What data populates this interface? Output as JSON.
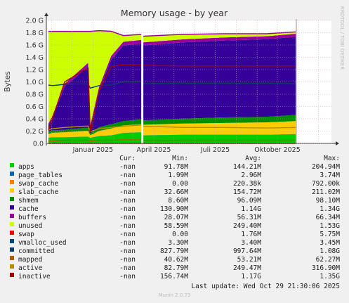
{
  "chart_data": {
    "type": "area",
    "title": "Memory usage - by year",
    "ylabel": "Bytes",
    "side_label": "RRDTOOL / TOBI OETIKER",
    "ylim": [
      0,
      2.0
    ],
    "yticks": [
      "0.0",
      "0.2 G",
      "0.4 G",
      "0.6 G",
      "0.8 G",
      "1.0 G",
      "1.2 G",
      "1.4 G",
      "1.6 G",
      "1.8 G",
      "2.0 G"
    ],
    "ytick_values": [
      0,
      0.2,
      0.4,
      0.6,
      0.8,
      1.0,
      1.2,
      1.4,
      1.6,
      1.8,
      2.0
    ],
    "xticks": [
      {
        "label": "Januar 2025",
        "x": "2025-01-01"
      },
      {
        "label": "April 2025",
        "x": "2025-04-01"
      },
      {
        "label": "Juli 2025",
        "x": "2025-07-01"
      },
      {
        "label": "Oktober 2025",
        "x": "2025-10-01"
      }
    ],
    "xrange": [
      "2024-10-24",
      "2025-12-20"
    ],
    "gap": "2025-03-15",
    "x": [
      "2024-10-27",
      "2024-11-02",
      "2024-11-20",
      "2024-12-20",
      "2024-12-25",
      "2024-12-28",
      "2025-01-10",
      "2025-01-28",
      "2025-02-15",
      "2025-03-14",
      "2025-03-16",
      "2025-05-15",
      "2025-07-15",
      "2025-09-15",
      "2025-10-28"
    ],
    "stack_series": [
      {
        "name": "apps",
        "color": "#00cc00",
        "values": [
          0.09,
          0.1,
          0.1,
          0.11,
          0.11,
          0.09,
          0.12,
          0.13,
          0.17,
          0.18,
          0.13,
          0.14,
          0.14,
          0.14,
          0.15
        ]
      },
      {
        "name": "page_tables",
        "color": "#0066b3",
        "values": [
          0.002,
          0.002,
          0.002,
          0.002,
          0.002,
          0.002,
          0.003,
          0.003,
          0.003,
          0.003,
          0.003,
          0.003,
          0.003,
          0.003,
          0.003
        ]
      },
      {
        "name": "swap_cache",
        "color": "#ff8000",
        "values": [
          0.0,
          0.0,
          0.0,
          0.0,
          0.0,
          0.0,
          0.0,
          0.0,
          0.0,
          0.0,
          0.0,
          0.0,
          0.0,
          0.0,
          0.0
        ]
      },
      {
        "name": "slab_cache",
        "color": "#ffcc00",
        "values": [
          0.06,
          0.07,
          0.08,
          0.09,
          0.09,
          0.04,
          0.08,
          0.11,
          0.12,
          0.13,
          0.17,
          0.18,
          0.19,
          0.2,
          0.21
        ]
      },
      {
        "name": "shmem",
        "color": "#008f00",
        "values": [
          0.04,
          0.04,
          0.04,
          0.05,
          0.05,
          0.03,
          0.06,
          0.07,
          0.07,
          0.08,
          0.07,
          0.08,
          0.09,
          0.09,
          0.1
        ]
      },
      {
        "name": "cache",
        "color": "#330099",
        "values": [
          0.1,
          0.2,
          0.7,
          0.95,
          1.0,
          0.1,
          0.6,
          1.05,
          1.23,
          1.23,
          1.22,
          1.24,
          1.25,
          1.26,
          1.27
        ]
      },
      {
        "name": "buffers",
        "color": "#990099",
        "values": [
          0.03,
          0.04,
          0.05,
          0.06,
          0.06,
          0.03,
          0.05,
          0.06,
          0.06,
          0.06,
          0.05,
          0.05,
          0.05,
          0.05,
          0.05
        ]
      },
      {
        "name": "unused",
        "color": "#ccff00",
        "values": [
          1.5,
          1.37,
          0.85,
          0.56,
          0.51,
          1.53,
          0.92,
          0.4,
          0.1,
          0.09,
          0.1,
          0.08,
          0.06,
          0.04,
          0.03
        ]
      }
    ],
    "line_series": [
      {
        "name": "swap",
        "color": "#ff0000",
        "values": [
          0.0,
          0.0,
          0.0,
          0.0,
          0.0,
          0.0,
          0.0,
          0.0,
          0.0,
          0.0,
          0.0,
          0.0,
          0.0,
          0.0,
          0.0
        ]
      },
      {
        "name": "vmalloc_used",
        "color": "#00487d",
        "values": [
          0.003,
          0.003,
          0.003,
          0.003,
          0.003,
          0.003,
          0.003,
          0.003,
          0.003,
          0.003,
          0.003,
          0.003,
          0.003,
          0.003,
          0.003
        ]
      },
      {
        "name": "committed",
        "color": "#0a3d6b",
        "values": [
          0.95,
          0.94,
          0.96,
          0.97,
          0.96,
          0.9,
          0.94,
          0.95,
          1.0,
          1.0,
          0.97,
          0.98,
          0.98,
          0.98,
          0.97
        ]
      },
      {
        "name": "mapped",
        "color": "#b35a00",
        "values": [
          0.04,
          0.04,
          0.05,
          0.05,
          0.05,
          0.04,
          0.05,
          0.05,
          0.06,
          0.06,
          0.05,
          0.05,
          0.05,
          0.05,
          0.05
        ]
      },
      {
        "name": "active",
        "color": "#b38f00",
        "values": [
          0.22,
          0.24,
          0.26,
          0.28,
          0.28,
          0.19,
          0.24,
          0.26,
          0.28,
          0.3,
          0.28,
          0.26,
          0.26,
          0.25,
          0.26
        ]
      },
      {
        "name": "inactive",
        "color": "#a50000",
        "values": [
          0.22,
          0.4,
          1.0,
          1.2,
          1.22,
          0.17,
          0.85,
          1.25,
          1.28,
          1.28,
          1.27,
          1.26,
          1.26,
          1.26,
          1.26
        ]
      }
    ]
  },
  "legend": {
    "headers": {
      "cur": "Cur:",
      "min": "Min:",
      "avg": "Avg:",
      "max": "Max:"
    },
    "rows": [
      {
        "name": "apps",
        "color": "#00cc00",
        "cur": "-nan",
        "min": "91.78M",
        "avg": "144.21M",
        "max": "204.94M"
      },
      {
        "name": "page_tables",
        "color": "#0066b3",
        "cur": "-nan",
        "min": "1.99M",
        "avg": "2.96M",
        "max": "3.74M"
      },
      {
        "name": "swap_cache",
        "color": "#ff8000",
        "cur": "-nan",
        "min": "0.00",
        "avg": "220.38k",
        "max": "792.00k"
      },
      {
        "name": "slab_cache",
        "color": "#ffcc00",
        "cur": "-nan",
        "min": "32.66M",
        "avg": "154.72M",
        "max": "211.02M"
      },
      {
        "name": "shmem",
        "color": "#008f00",
        "cur": "-nan",
        "min": "8.60M",
        "avg": "96.09M",
        "max": "98.10M"
      },
      {
        "name": "cache",
        "color": "#330099",
        "cur": "-nan",
        "min": "130.90M",
        "avg": "1.14G",
        "max": "1.34G"
      },
      {
        "name": "buffers",
        "color": "#990099",
        "cur": "-nan",
        "min": "28.07M",
        "avg": "56.31M",
        "max": "66.34M"
      },
      {
        "name": "unused",
        "color": "#ccff00",
        "cur": "-nan",
        "min": "58.59M",
        "avg": "249.40M",
        "max": "1.53G"
      },
      {
        "name": "swap",
        "color": "#ff0000",
        "cur": "-nan",
        "min": "0.00",
        "avg": "1.76M",
        "max": "5.75M"
      },
      {
        "name": "vmalloc_used",
        "color": "#00487d",
        "cur": "-nan",
        "min": "3.30M",
        "avg": "3.40M",
        "max": "3.45M"
      },
      {
        "name": "committed",
        "color": "#0a3d6b",
        "cur": "-nan",
        "min": "827.79M",
        "avg": "997.64M",
        "max": "1.08G"
      },
      {
        "name": "mapped",
        "color": "#b35a00",
        "cur": "-nan",
        "min": "40.62M",
        "avg": "53.21M",
        "max": "62.27M"
      },
      {
        "name": "active",
        "color": "#b38f00",
        "cur": "-nan",
        "min": "82.79M",
        "avg": "249.47M",
        "max": "316.90M"
      },
      {
        "name": "inactive",
        "color": "#a50000",
        "cur": "-nan",
        "min": "156.74M",
        "avg": "1.17G",
        "max": "1.35G"
      }
    ]
  },
  "footer": {
    "last_update": "Last update: Wed Oct 29 21:30:06 2025",
    "generator": "Munin 2.0.73"
  }
}
